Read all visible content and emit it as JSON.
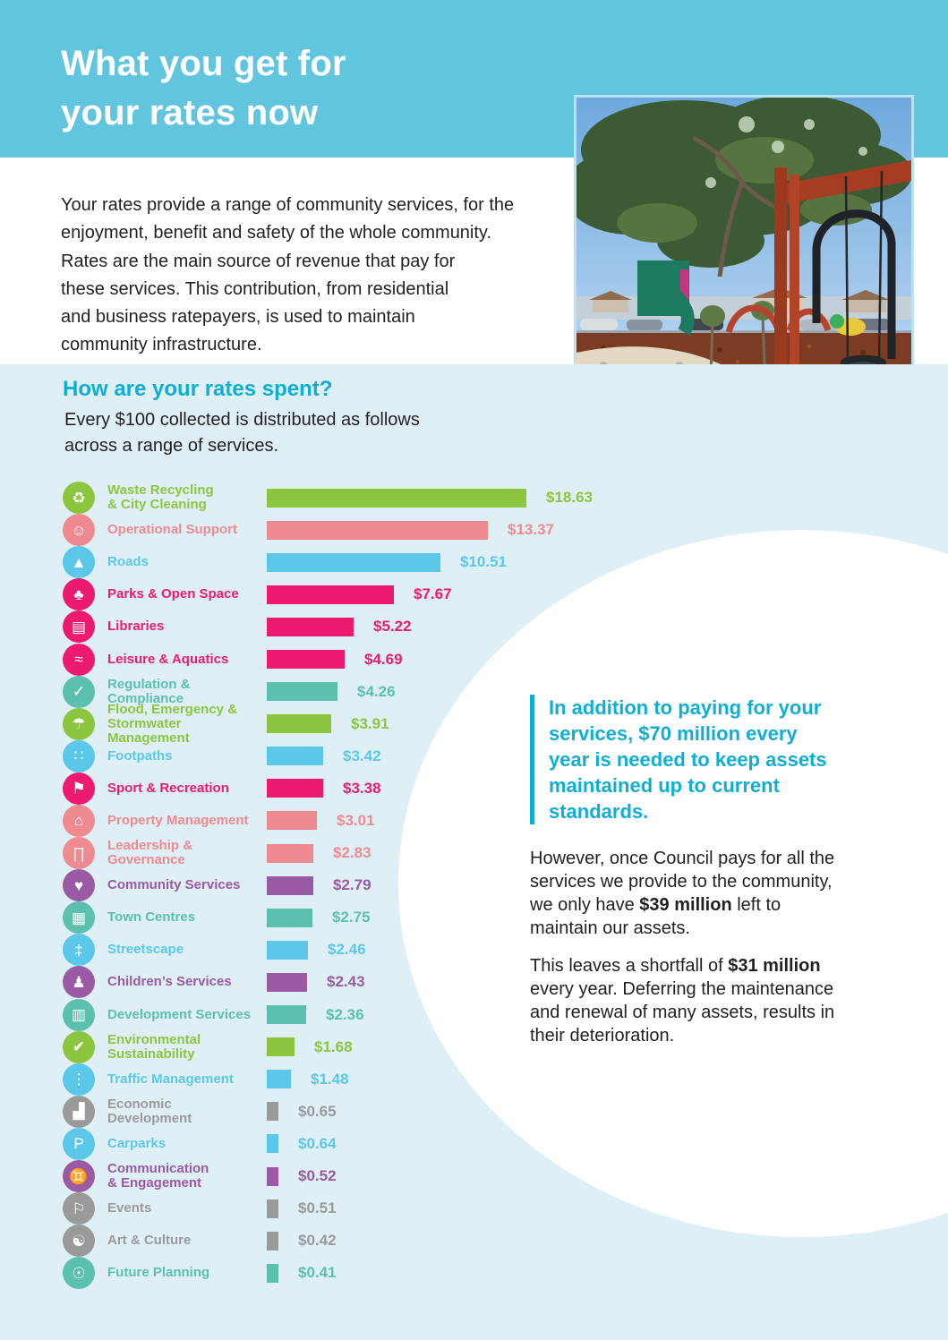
{
  "header": {
    "title": "What you get for\nyour rates now"
  },
  "intro": {
    "para1": "Your rates provide a range of community services, for the\nenjoyment, benefit and safety of the whole community.",
    "para2": "Rates are the main source of revenue that pay for\nthese services. This contribution, from residential\nand business ratepayers, is used to maintain\ncommunity infrastructure."
  },
  "photo": {
    "alt": "Playground with red swing frame, baby swing seat, green slide and gum trees"
  },
  "spend_section": {
    "heading": "How are your rates spent?",
    "subheading": "Every $100 collected is distributed as follows\nacross a range of services."
  },
  "callout": {
    "text": "In addition to paying for your\nservices, $70 million every\nyear is needed to keep assets\nmaintained up to current\nstandards."
  },
  "right_column": {
    "para1_segments": [
      {
        "t": "However, once Council pays for all the\nservices we provide to the community,\nwe only have "
      },
      {
        "t": "$39 million",
        "b": true
      },
      {
        "t": " left to\nmaintain our assets."
      }
    ],
    "para2_segments": [
      {
        "t": "This leaves a shortfall of "
      },
      {
        "t": "$31 million",
        "b": true
      },
      {
        "t": "\nevery year. Deferring the maintenance\nand renewal of many assets, results in\ntheir deterioration."
      }
    ]
  },
  "chart_data": {
    "type": "bar",
    "title": "How are your rates spent?",
    "unit": "dollars per $100 of rates collected",
    "orientation": "horizontal",
    "xlim": [
      0,
      20
    ],
    "grid": false,
    "palette": {
      "green": "#8cc63f",
      "salmon": "#ee8a90",
      "blue": "#5cc8e9",
      "magenta": "#ec1b6f",
      "teal": "#5cc0ae",
      "purple": "#9a5aa4",
      "gray": "#9a9a9a"
    },
    "categories": [
      "Waste Recycling & City Cleaning",
      "Operational Support",
      "Roads",
      "Parks & Open Space",
      "Libraries",
      "Leisure & Aquatics",
      "Regulation & Compliance",
      "Flood, Emergency & Stormwater Management",
      "Footpaths",
      "Sport & Recreation",
      "Property Management",
      "Leadership & Governance",
      "Community Services",
      "Town Centres",
      "Streetscape",
      "Children’s Services",
      "Development Services",
      "Environmental Sustainability",
      "Traffic Management",
      "Economic Development",
      "Carparks",
      "Communication & Engagement",
      "Events",
      "Art & Culture",
      "Future Planning"
    ],
    "values": [
      18.63,
      13.37,
      10.51,
      7.67,
      5.22,
      4.69,
      4.26,
      3.91,
      3.42,
      3.38,
      3.01,
      2.83,
      2.79,
      2.75,
      2.46,
      2.43,
      2.36,
      1.68,
      1.48,
      0.65,
      0.64,
      0.52,
      0.51,
      0.42,
      0.41
    ],
    "items": [
      {
        "label": "Waste Recycling\n& City Cleaning",
        "value": 18.63,
        "display": "$18.63",
        "color": "green",
        "icon": "waste-bin-icon",
        "glyph": "♻"
      },
      {
        "label": "Operational Support",
        "value": 13.37,
        "display": "$13.37",
        "color": "salmon",
        "icon": "headset-operator-icon",
        "glyph": "☺"
      },
      {
        "label": "Roads",
        "value": 10.51,
        "display": "$10.51",
        "color": "blue",
        "icon": "road-icon",
        "glyph": "▲"
      },
      {
        "label": "Parks & Open Space",
        "value": 7.67,
        "display": "$7.67",
        "color": "magenta",
        "icon": "park-tree-icon",
        "glyph": "♣"
      },
      {
        "label": "Libraries",
        "value": 5.22,
        "display": "$5.22",
        "color": "magenta",
        "icon": "open-book-icon",
        "glyph": "▤"
      },
      {
        "label": "Leisure & Aquatics",
        "value": 4.69,
        "display": "$4.69",
        "color": "magenta",
        "icon": "swimmer-icon",
        "glyph": "≈"
      },
      {
        "label": "Regulation & Compliance",
        "value": 4.26,
        "display": "$4.26",
        "color": "teal",
        "icon": "clipboard-check-icon",
        "glyph": "✓"
      },
      {
        "label": "Flood, Emergency &\nStormwater Management",
        "value": 3.91,
        "display": "$3.91",
        "color": "green",
        "icon": "flood-rain-icon",
        "glyph": "☂"
      },
      {
        "label": "Footpaths",
        "value": 3.42,
        "display": "$3.42",
        "color": "blue",
        "icon": "footprints-icon",
        "glyph": "∷"
      },
      {
        "label": "Sport & Recreation",
        "value": 3.38,
        "display": "$3.38",
        "color": "magenta",
        "icon": "sport-flag-icon",
        "glyph": "⚑"
      },
      {
        "label": "Property Management",
        "value": 3.01,
        "display": "$3.01",
        "color": "salmon",
        "icon": "house-in-hand-icon",
        "glyph": "⌂"
      },
      {
        "label": "Leadership &\nGovernance",
        "value": 2.83,
        "display": "$2.83",
        "color": "salmon",
        "icon": "civic-building-icon",
        "glyph": "∏"
      },
      {
        "label": "Community Services",
        "value": 2.79,
        "display": "$2.79",
        "color": "purple",
        "icon": "handshake-heart-icon",
        "glyph": "♥"
      },
      {
        "label": "Town Centres",
        "value": 2.75,
        "display": "$2.75",
        "color": "teal",
        "icon": "town-buildings-icon",
        "glyph": "▦"
      },
      {
        "label": "Streetscape",
        "value": 2.46,
        "display": "$2.46",
        "color": "blue",
        "icon": "street-sign-icon",
        "glyph": "‡"
      },
      {
        "label": "Children’s Services",
        "value": 2.43,
        "display": "$2.43",
        "color": "purple",
        "icon": "parent-child-icon",
        "glyph": "♟"
      },
      {
        "label": "Development Services",
        "value": 2.36,
        "display": "$2.36",
        "color": "teal",
        "icon": "document-plan-icon",
        "glyph": "▥"
      },
      {
        "label": "Environmental\nSustainability",
        "value": 1.68,
        "display": "$1.68",
        "color": "green",
        "icon": "leaf-check-icon",
        "glyph": "✔"
      },
      {
        "label": "Traffic Management",
        "value": 1.48,
        "display": "$1.48",
        "color": "blue",
        "icon": "traffic-light-icon",
        "glyph": "⋮"
      },
      {
        "label": "Economic\nDevelopment",
        "value": 0.65,
        "display": "$0.65",
        "color": "gray",
        "icon": "growth-chart-icon",
        "glyph": "▟"
      },
      {
        "label": "Carparks",
        "value": 0.64,
        "display": "$0.64",
        "color": "blue",
        "icon": "parking-icon",
        "glyph": "P"
      },
      {
        "label": "Communication\n& Engagement",
        "value": 0.52,
        "display": "$0.52",
        "color": "purple",
        "icon": "two-people-icon",
        "glyph": "♊"
      },
      {
        "label": "Events",
        "value": 0.51,
        "display": "$0.51",
        "color": "gray",
        "icon": "bunting-icon",
        "glyph": "⚐"
      },
      {
        "label": "Art & Culture",
        "value": 0.42,
        "display": "$0.42",
        "color": "gray",
        "icon": "theatre-masks-icon",
        "glyph": "☯"
      },
      {
        "label": "Future Planning",
        "value": 0.41,
        "display": "$0.41",
        "color": "teal",
        "icon": "lightbulb-icon",
        "glyph": "☉"
      }
    ]
  }
}
